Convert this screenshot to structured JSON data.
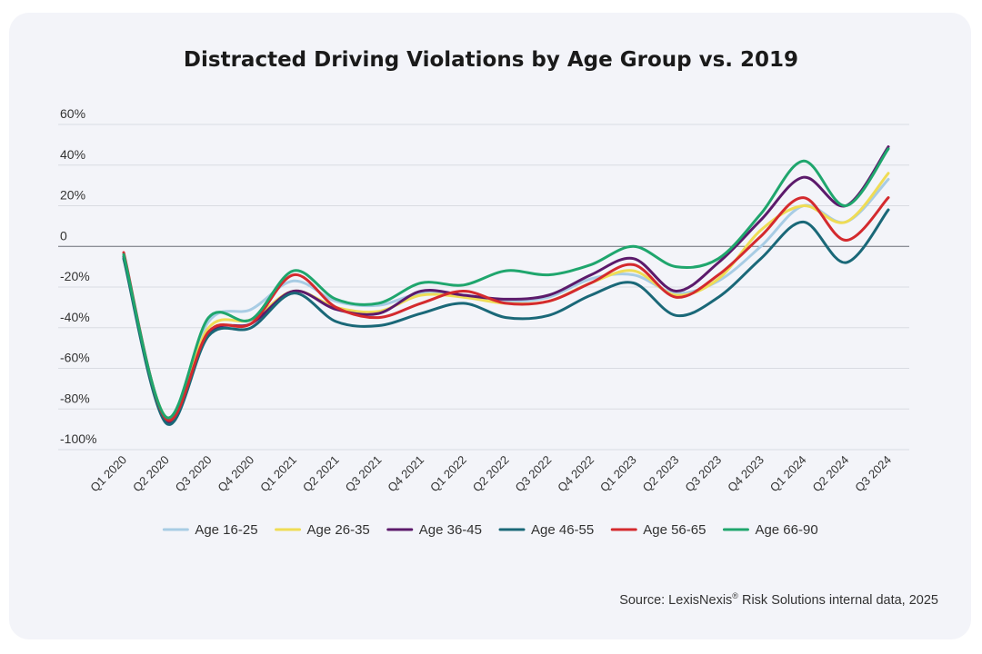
{
  "chart_data": {
    "type": "line",
    "title": "Distracted Driving Violations by Age Group vs. 2019",
    "categories": [
      "Q1 2020",
      "Q2 2020",
      "Q3 2020",
      "Q4 2020",
      "Q1 2021",
      "Q2 2021",
      "Q3 2021",
      "Q4 2021",
      "Q1 2022",
      "Q2 2022",
      "Q3 2022",
      "Q4 2022",
      "Q1 2023",
      "Q2 2023",
      "Q3 2023",
      "Q4 2023",
      "Q1 2024",
      "Q2 2024",
      "Q3 2024"
    ],
    "y_ticks": [
      {
        "value": 60,
        "label": "60%"
      },
      {
        "value": 40,
        "label": "40%"
      },
      {
        "value": 20,
        "label": "20%"
      },
      {
        "value": 0,
        "label": "0"
      },
      {
        "value": -20,
        "label": "-20%"
      },
      {
        "value": -40,
        "label": "-40%"
      },
      {
        "value": -60,
        "label": "-60%"
      },
      {
        "value": -80,
        "label": "-80%"
      },
      {
        "value": -100,
        "label": "-100%"
      }
    ],
    "ylim": [
      -100,
      60
    ],
    "xlabel": "",
    "ylabel": "",
    "grid": true,
    "legend_position": "bottom",
    "series": [
      {
        "name": "Age 16-25",
        "color": "#a8cce4",
        "values": [
          -5,
          -85,
          -37,
          -31,
          -17,
          -27,
          -29,
          -23,
          -24,
          -27,
          -25,
          -16,
          -14,
          -23,
          -17,
          0,
          20,
          12,
          33
        ]
      },
      {
        "name": "Age 26-35",
        "color": "#efdc55",
        "values": [
          -6,
          -84,
          -40,
          -36,
          -22,
          -30,
          -32,
          -24,
          -25,
          -28,
          -27,
          -18,
          -12,
          -24,
          -16,
          8,
          20,
          12,
          36
        ]
      },
      {
        "name": "Age 36-45",
        "color": "#5c1a6b",
        "values": [
          -5,
          -86,
          -43,
          -38,
          -22,
          -31,
          -33,
          -22,
          -24,
          -26,
          -24,
          -14,
          -6,
          -22,
          -8,
          13,
          34,
          20,
          49
        ]
      },
      {
        "name": "Age 46-55",
        "color": "#1a6878",
        "values": [
          -6,
          -87,
          -44,
          -40,
          -23,
          -37,
          -39,
          -33,
          -28,
          -35,
          -34,
          -24,
          -18,
          -34,
          -25,
          -6,
          12,
          -8,
          18
        ]
      },
      {
        "name": "Age 56-65",
        "color": "#d42a2e",
        "values": [
          -3,
          -85,
          -42,
          -38,
          -14,
          -30,
          -35,
          -28,
          -22,
          -28,
          -27,
          -18,
          -9,
          -25,
          -14,
          5,
          24,
          3,
          24
        ]
      },
      {
        "name": "Age 66-90",
        "color": "#1fa66d",
        "values": [
          -4,
          -84,
          -35,
          -36,
          -12,
          -26,
          -28,
          -18,
          -19,
          -12,
          -14,
          -9,
          0,
          -10,
          -6,
          16,
          42,
          20,
          48
        ]
      }
    ]
  },
  "source": {
    "prefix": "Source: LexisNexis",
    "superscript": "®",
    "suffix": " Risk Solutions internal data, 2025"
  }
}
